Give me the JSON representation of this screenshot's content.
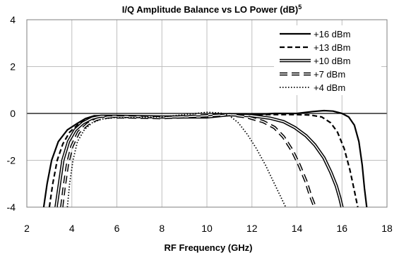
{
  "chart_data": {
    "type": "line",
    "title": "I/Q Amplitude Balance vs LO Power (dB)",
    "title_superscript": "5",
    "xlabel": "RF Frequency  (GHz)",
    "ylabel": "",
    "xlim": [
      2,
      18
    ],
    "ylim": [
      -4,
      4
    ],
    "xticks": [
      "2",
      "4",
      "6",
      "8",
      "10",
      "12",
      "14",
      "16",
      "18"
    ],
    "yticks": [
      "4",
      "2",
      "0",
      "-2",
      "-4"
    ],
    "grid": true,
    "legend_position": "top-right",
    "series": [
      {
        "name": "+16 dBm",
        "style": "solid-thick",
        "x": [
          2.75,
          2.9,
          3.1,
          3.4,
          3.8,
          4.2,
          4.6,
          5.0,
          6.0,
          7.0,
          8.0,
          9.0,
          10.0,
          11.0,
          12.0,
          13.0,
          14.0,
          14.7,
          15.2,
          15.6,
          16.0,
          16.3,
          16.55,
          16.75,
          16.9,
          17.0,
          17.1
        ],
        "y": [
          -4.0,
          -3.0,
          -2.0,
          -1.2,
          -0.7,
          -0.45,
          -0.22,
          -0.1,
          -0.1,
          -0.15,
          -0.15,
          -0.12,
          -0.15,
          -0.05,
          -0.05,
          0.0,
          0.0,
          0.08,
          0.12,
          0.1,
          0.0,
          -0.15,
          -0.5,
          -1.2,
          -2.2,
          -3.2,
          -4.0
        ]
      },
      {
        "name": "+13 dBm",
        "style": "dashed-thick",
        "x": [
          3.0,
          3.15,
          3.35,
          3.6,
          3.9,
          4.3,
          4.7,
          5.1,
          6.0,
          8.0,
          10.0,
          12.0,
          13.0,
          14.0,
          14.6,
          15.1,
          15.5,
          15.8,
          16.1,
          16.35,
          16.55,
          16.7
        ],
        "y": [
          -4.0,
          -3.0,
          -2.0,
          -1.3,
          -0.8,
          -0.45,
          -0.22,
          -0.12,
          -0.12,
          -0.15,
          -0.12,
          -0.05,
          -0.05,
          -0.05,
          -0.07,
          -0.15,
          -0.4,
          -0.8,
          -1.5,
          -2.4,
          -3.3,
          -4.0
        ]
      },
      {
        "name": "+10 dBm",
        "style": "double",
        "x": [
          3.3,
          3.45,
          3.6,
          3.85,
          4.15,
          4.5,
          4.9,
          5.3,
          6.0,
          8.0,
          10.0,
          11.0,
          12.0,
          12.8,
          13.4,
          13.9,
          14.4,
          14.8,
          15.2,
          15.5,
          15.75,
          15.9,
          16.0
        ],
        "y": [
          -4.0,
          -3.0,
          -2.0,
          -1.2,
          -0.7,
          -0.4,
          -0.2,
          -0.12,
          -0.12,
          -0.15,
          -0.15,
          -0.05,
          -0.1,
          -0.2,
          -0.35,
          -0.6,
          -0.95,
          -1.35,
          -1.9,
          -2.5,
          -3.1,
          -3.6,
          -4.0
        ]
      },
      {
        "name": "+7 dBm",
        "style": "dashed-long",
        "x": [
          3.55,
          3.65,
          3.8,
          4.0,
          4.3,
          4.7,
          5.1,
          5.6,
          6.5,
          8.0,
          10.0,
          11.0,
          11.8,
          12.5,
          13.0,
          13.4,
          13.8,
          14.1,
          14.4,
          14.6,
          14.8
        ],
        "y": [
          -4.0,
          -3.2,
          -2.2,
          -1.4,
          -0.8,
          -0.45,
          -0.25,
          -0.15,
          -0.15,
          -0.18,
          -0.1,
          -0.05,
          -0.15,
          -0.35,
          -0.6,
          -1.0,
          -1.6,
          -2.2,
          -2.9,
          -3.5,
          -4.0
        ]
      },
      {
        "name": "+4 dBm",
        "style": "dotted",
        "x": [
          3.8,
          3.9,
          4.05,
          4.25,
          4.55,
          4.9,
          5.3,
          5.8,
          6.5,
          8.0,
          9.0,
          10.0,
          10.6,
          11.0,
          11.4,
          11.8,
          12.2,
          12.6,
          12.9,
          13.2,
          13.5
        ],
        "y": [
          -4.0,
          -3.0,
          -2.0,
          -1.2,
          -0.7,
          -0.4,
          -0.25,
          -0.18,
          -0.18,
          -0.15,
          -0.05,
          0.05,
          0.02,
          -0.1,
          -0.4,
          -0.9,
          -1.5,
          -2.2,
          -2.8,
          -3.4,
          -4.0
        ]
      }
    ]
  }
}
